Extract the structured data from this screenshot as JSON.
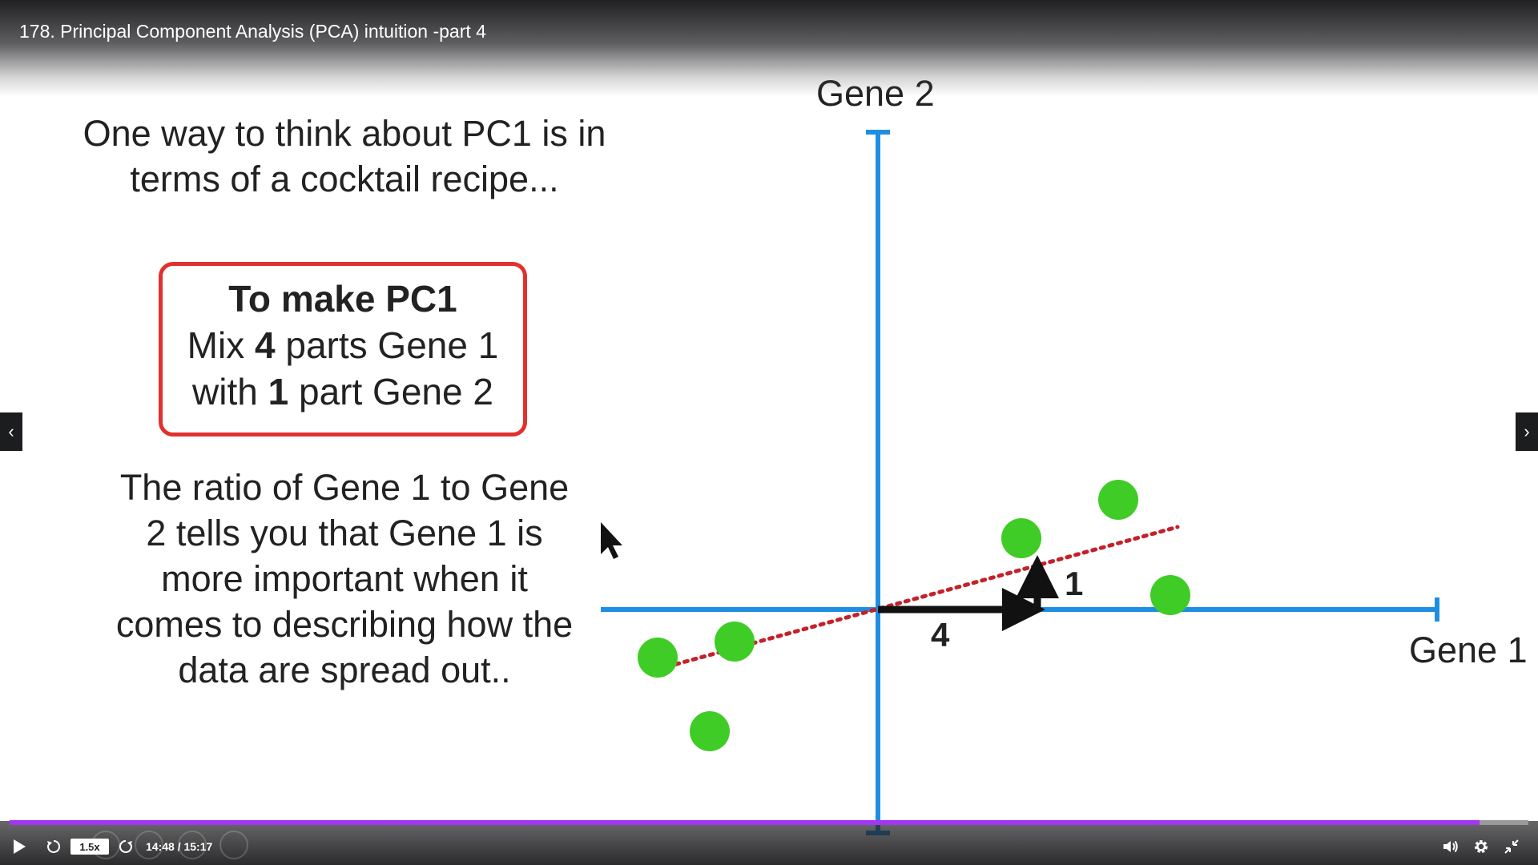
{
  "lecture": {
    "title": "178. Principal Component Analysis (PCA) intuition -part 4"
  },
  "slide": {
    "intro_line1": "One way to think about PC1 is in",
    "intro_line2": "terms of a cocktail recipe...",
    "recipe": {
      "heading": "To make PC1",
      "line1_pre": "Mix ",
      "line1_num": "4",
      "line1_post": " parts Gene 1",
      "line2_pre": "with ",
      "line2_num": "1",
      "line2_post": " part Gene 2"
    },
    "ratio_lines": [
      "The ratio of Gene 1 to Gene",
      "2 tells you that Gene 1 is",
      "more important when it",
      "comes to describing how the",
      "data are spread out.."
    ],
    "y_axis_label": "Gene 2",
    "x_axis_label": "Gene 1",
    "vector_x_label": "4",
    "vector_y_label": "1",
    "colors": {
      "axis": "#1e8fe0",
      "points": "#3fcc26",
      "pc1_line": "#c4212a",
      "recipe_border": "#e0312f"
    }
  },
  "player": {
    "speed": "1.5x",
    "time": "14:48 / 15:17",
    "progress": 0.968,
    "accent": "#a435f0"
  }
}
